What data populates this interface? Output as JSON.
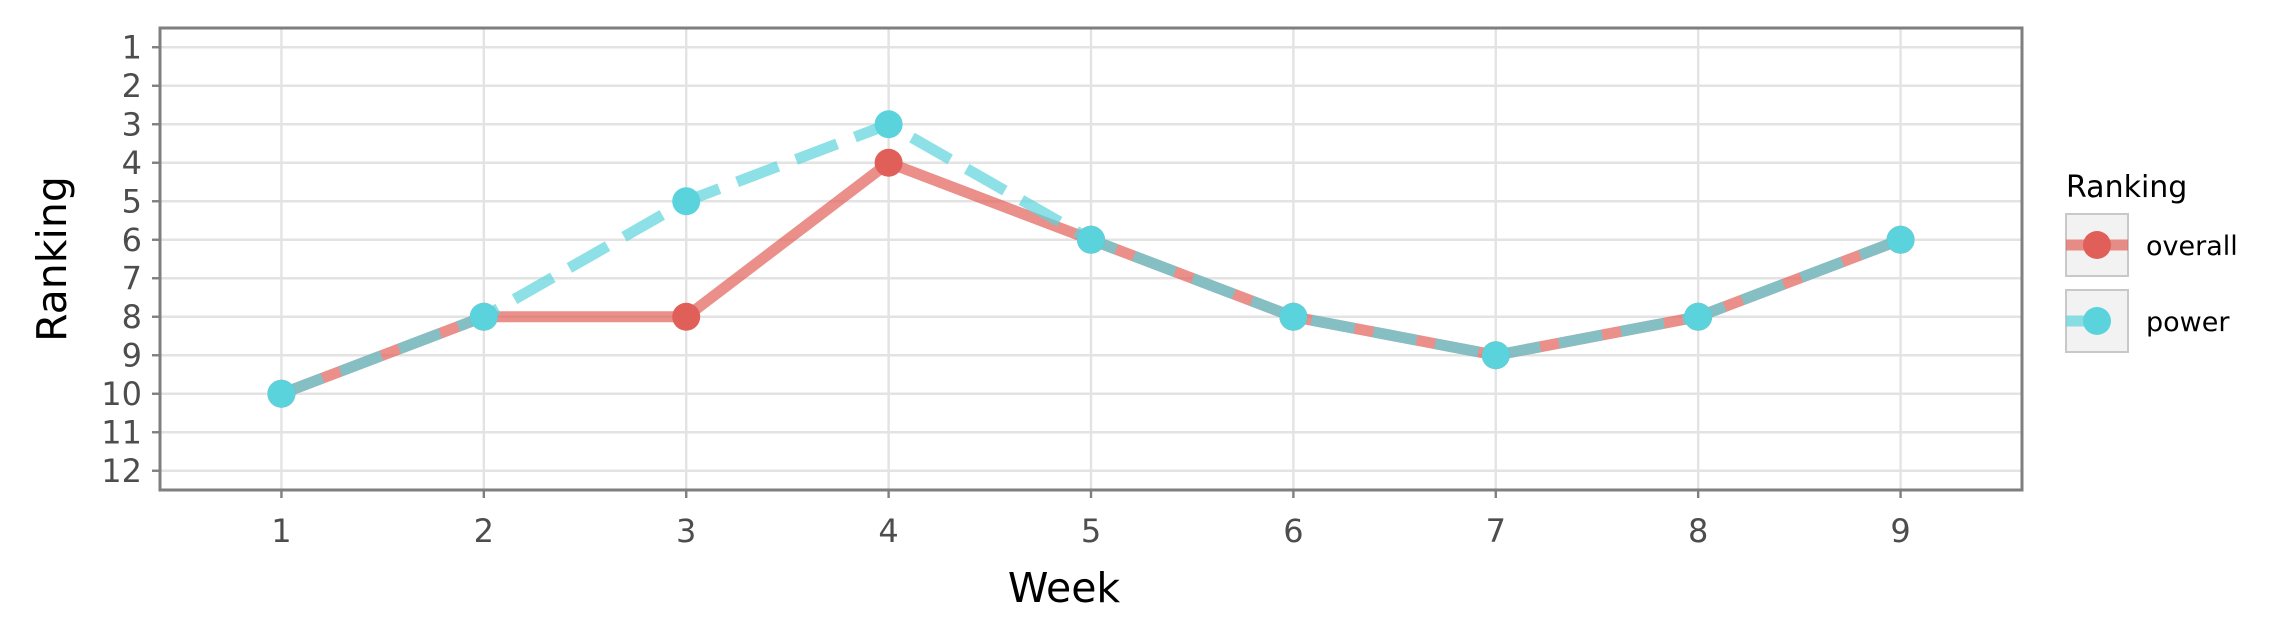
{
  "chart_data": {
    "type": "line",
    "title": "",
    "xlabel": "Week",
    "ylabel": "Ranking",
    "x": [
      1,
      2,
      3,
      4,
      5,
      6,
      7,
      8,
      9
    ],
    "x_ticks": [
      "1",
      "2",
      "3",
      "4",
      "5",
      "6",
      "7",
      "8",
      "9"
    ],
    "y_ticks": [
      "1",
      "2",
      "3",
      "4",
      "5",
      "6",
      "7",
      "8",
      "9",
      "10",
      "11",
      "12"
    ],
    "xlim": [
      0.4,
      9.6
    ],
    "ylim": [
      12.5,
      0.5
    ],
    "y_reversed": true,
    "grid": true,
    "legend": {
      "title": "Ranking",
      "position": "right"
    },
    "series": [
      {
        "name": "overall",
        "values": [
          10,
          8,
          8,
          4,
          6,
          8,
          9,
          8,
          6
        ],
        "color": "#E15F59",
        "line_style": "solid"
      },
      {
        "name": "power",
        "values": [
          10,
          8,
          5,
          3,
          6,
          8,
          9,
          8,
          6
        ],
        "color": "#5BD3DC",
        "line_style": "dashed"
      }
    ]
  }
}
